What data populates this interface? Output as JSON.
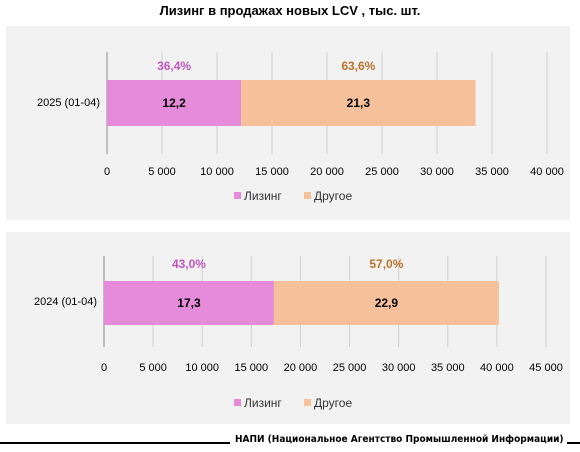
{
  "title": "Лизинг в продажах новых LCV , тыс. шт.",
  "footer": "НАПИ (Национальное Агентство Промышленной Информации)",
  "colors": {
    "leasing": "#e58bd9",
    "other": "#f6c09a",
    "leasing_pct": "#c055c0",
    "other_pct": "#b8742a"
  },
  "chart_data": [
    {
      "type": "bar",
      "orientation": "horizontal",
      "stacked": true,
      "categories": [
        "2025 (01-04)"
      ],
      "series": [
        {
          "name": "Лизинг",
          "values": [
            12200
          ],
          "value_labels": [
            "12,2"
          ],
          "share_labels": [
            "36,4%"
          ]
        },
        {
          "name": "Другое",
          "values": [
            21300
          ],
          "value_labels": [
            "21,3"
          ],
          "share_labels": [
            "63,6%"
          ]
        }
      ],
      "xlim": [
        0,
        40000
      ],
      "xticks": [
        0,
        5000,
        10000,
        15000,
        20000,
        25000,
        30000,
        35000,
        40000
      ],
      "xtick_labels": [
        "0",
        "5 000",
        "10 000",
        "15 000",
        "20 000",
        "25 000",
        "30 000",
        "35 000",
        "40 000"
      ],
      "grid": true,
      "legend": "bottom"
    },
    {
      "type": "bar",
      "orientation": "horizontal",
      "stacked": true,
      "categories": [
        "2024 (01-04)"
      ],
      "series": [
        {
          "name": "Лизинг",
          "values": [
            17300
          ],
          "value_labels": [
            "17,3"
          ],
          "share_labels": [
            "43,0%"
          ]
        },
        {
          "name": "Другое",
          "values": [
            22900
          ],
          "value_labels": [
            "22,9"
          ],
          "share_labels": [
            "57,0%"
          ]
        }
      ],
      "xlim": [
        0,
        45000
      ],
      "xticks": [
        0,
        5000,
        10000,
        15000,
        20000,
        25000,
        30000,
        35000,
        40000,
        45000
      ],
      "xtick_labels": [
        "0",
        "5 000",
        "10 000",
        "15 000",
        "20 000",
        "25 000",
        "30 000",
        "35 000",
        "40 000",
        "45 000"
      ],
      "grid": true,
      "legend": "bottom"
    }
  ]
}
